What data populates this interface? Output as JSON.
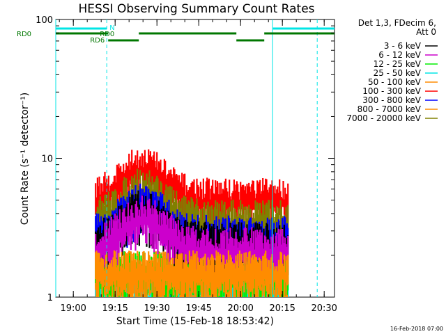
{
  "chart_data": {
    "type": "line",
    "title": "HESSI Observing Summary Count Rates",
    "xlabel": "Start Time (15-Feb-18 18:53:42)",
    "ylabel": "Count Rate (s⁻¹ detector⁻¹)",
    "x_axis": {
      "type": "time",
      "range": [
        "18:53:42",
        "20:33:42"
      ],
      "ticks": [
        "19:00",
        "19:15",
        "19:30",
        "19:45",
        "20:00",
        "20:15",
        "20:30"
      ]
    },
    "y_axis": {
      "scale": "log",
      "range": [
        1,
        100
      ],
      "ticks": [
        {
          "value": 1,
          "label": "1"
        },
        {
          "value": 10,
          "label": "10"
        },
        {
          "value": 100,
          "label": "100"
        }
      ]
    },
    "data_interval": [
      "19:08:00",
      "20:17:00"
    ],
    "legend": {
      "header": [
        "Det 1,3, FDecim 6,",
        "Att 0"
      ],
      "placement": "right"
    },
    "series": [
      {
        "name": "3 - 6 keV",
        "color": "#000000",
        "level": 2.4
      },
      {
        "name": "6 - 12 keV",
        "color": "#cc00cc",
        "level": 2.2
      },
      {
        "name": "12 - 25 keV",
        "color": "#00ee00",
        "level": 1.5
      },
      {
        "name": "25 - 50 keV",
        "color": "#00e5e5",
        "level": 1.2
      },
      {
        "name": "50 - 100 keV",
        "color": "#ff8c00",
        "level": 1.5
      },
      {
        "name": "100 - 300 keV",
        "color": "#ff0000",
        "level": 5.0
      },
      {
        "name": "300 - 800 keV",
        "color": "#0000ff",
        "level": 2.7
      },
      {
        "name": "800 - 7000 keV",
        "color": "#ff8c00",
        "level": 1.5
      },
      {
        "name": "7000 - 20000 keV",
        "color": "#808000",
        "level": 3.5
      }
    ],
    "annotations": {
      "night_intervals": [
        {
          "label": "N",
          "start": "18:53:42",
          "end": "19:12:00"
        },
        {
          "label": "",
          "start": "20:11:30",
          "end": "20:33:42"
        }
      ],
      "saa_intervals": [
        {
          "label": "RD0",
          "start": "18:53:42",
          "end": "19:12:30"
        },
        {
          "label": "RD0",
          "start": "19:23:30",
          "end": "19:58:30"
        },
        {
          "label": "",
          "start": "20:08:30",
          "end": "20:33:42"
        }
      ],
      "saa_offset_intervals": [
        {
          "label": "RD6",
          "start": "19:12:30",
          "end": "19:23:30"
        },
        {
          "label": "",
          "start": "19:58:30",
          "end": "20:08:30"
        }
      ],
      "vertical_lines": {
        "solid": [
          "18:53:42",
          "20:11:30"
        ],
        "dashed": [
          "19:12:00",
          "20:27:30"
        ]
      }
    },
    "footer": "16-Feb-2018 07:00"
  }
}
